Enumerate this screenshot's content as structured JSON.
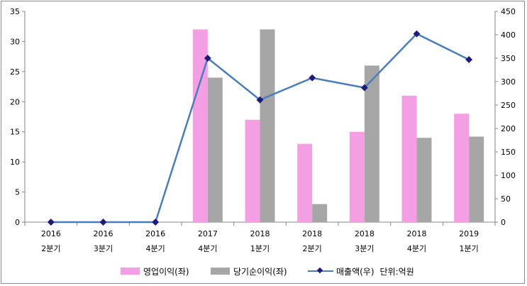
{
  "chart_data": {
    "type": "bar",
    "categories": [
      [
        "2016",
        "2분기"
      ],
      [
        "2016",
        "3분기"
      ],
      [
        "2016",
        "4분기"
      ],
      [
        "2017",
        "4분기"
      ],
      [
        "2018",
        "1분기"
      ],
      [
        "2018",
        "2분기"
      ],
      [
        "2018",
        "3분기"
      ],
      [
        "2018",
        "4분기"
      ],
      [
        "2019",
        "1분기"
      ]
    ],
    "series": [
      {
        "name": "영업이익(좌)",
        "type": "bar",
        "axis": "left",
        "color": "#f49ee3",
        "values": [
          0,
          0,
          0,
          32,
          17,
          13,
          15,
          21,
          18
        ]
      },
      {
        "name": "당기순이익(좌)",
        "type": "bar",
        "axis": "left",
        "color": "#a6a6a6",
        "values": [
          0,
          0,
          0,
          24,
          32,
          3,
          26,
          14,
          14.2
        ]
      },
      {
        "name": "매출액(우)",
        "type": "line",
        "axis": "right",
        "color": "#4a7ebb",
        "marker_color": "#1f1a7a",
        "values": [
          0,
          0,
          0,
          350,
          261,
          308,
          287,
          402,
          347
        ]
      }
    ],
    "y_left": {
      "ylim": [
        0,
        35
      ],
      "ticks": [
        "0",
        "5",
        "10",
        "15",
        "20",
        "25",
        "30",
        "35"
      ]
    },
    "y_right": {
      "ylim": [
        0,
        450
      ],
      "ticks": [
        "0",
        "50",
        "100",
        "150",
        "200",
        "250",
        "300",
        "350",
        "400",
        "450"
      ]
    },
    "unit_note": "단위:억원",
    "legend_position": "bottom",
    "grid": false
  }
}
